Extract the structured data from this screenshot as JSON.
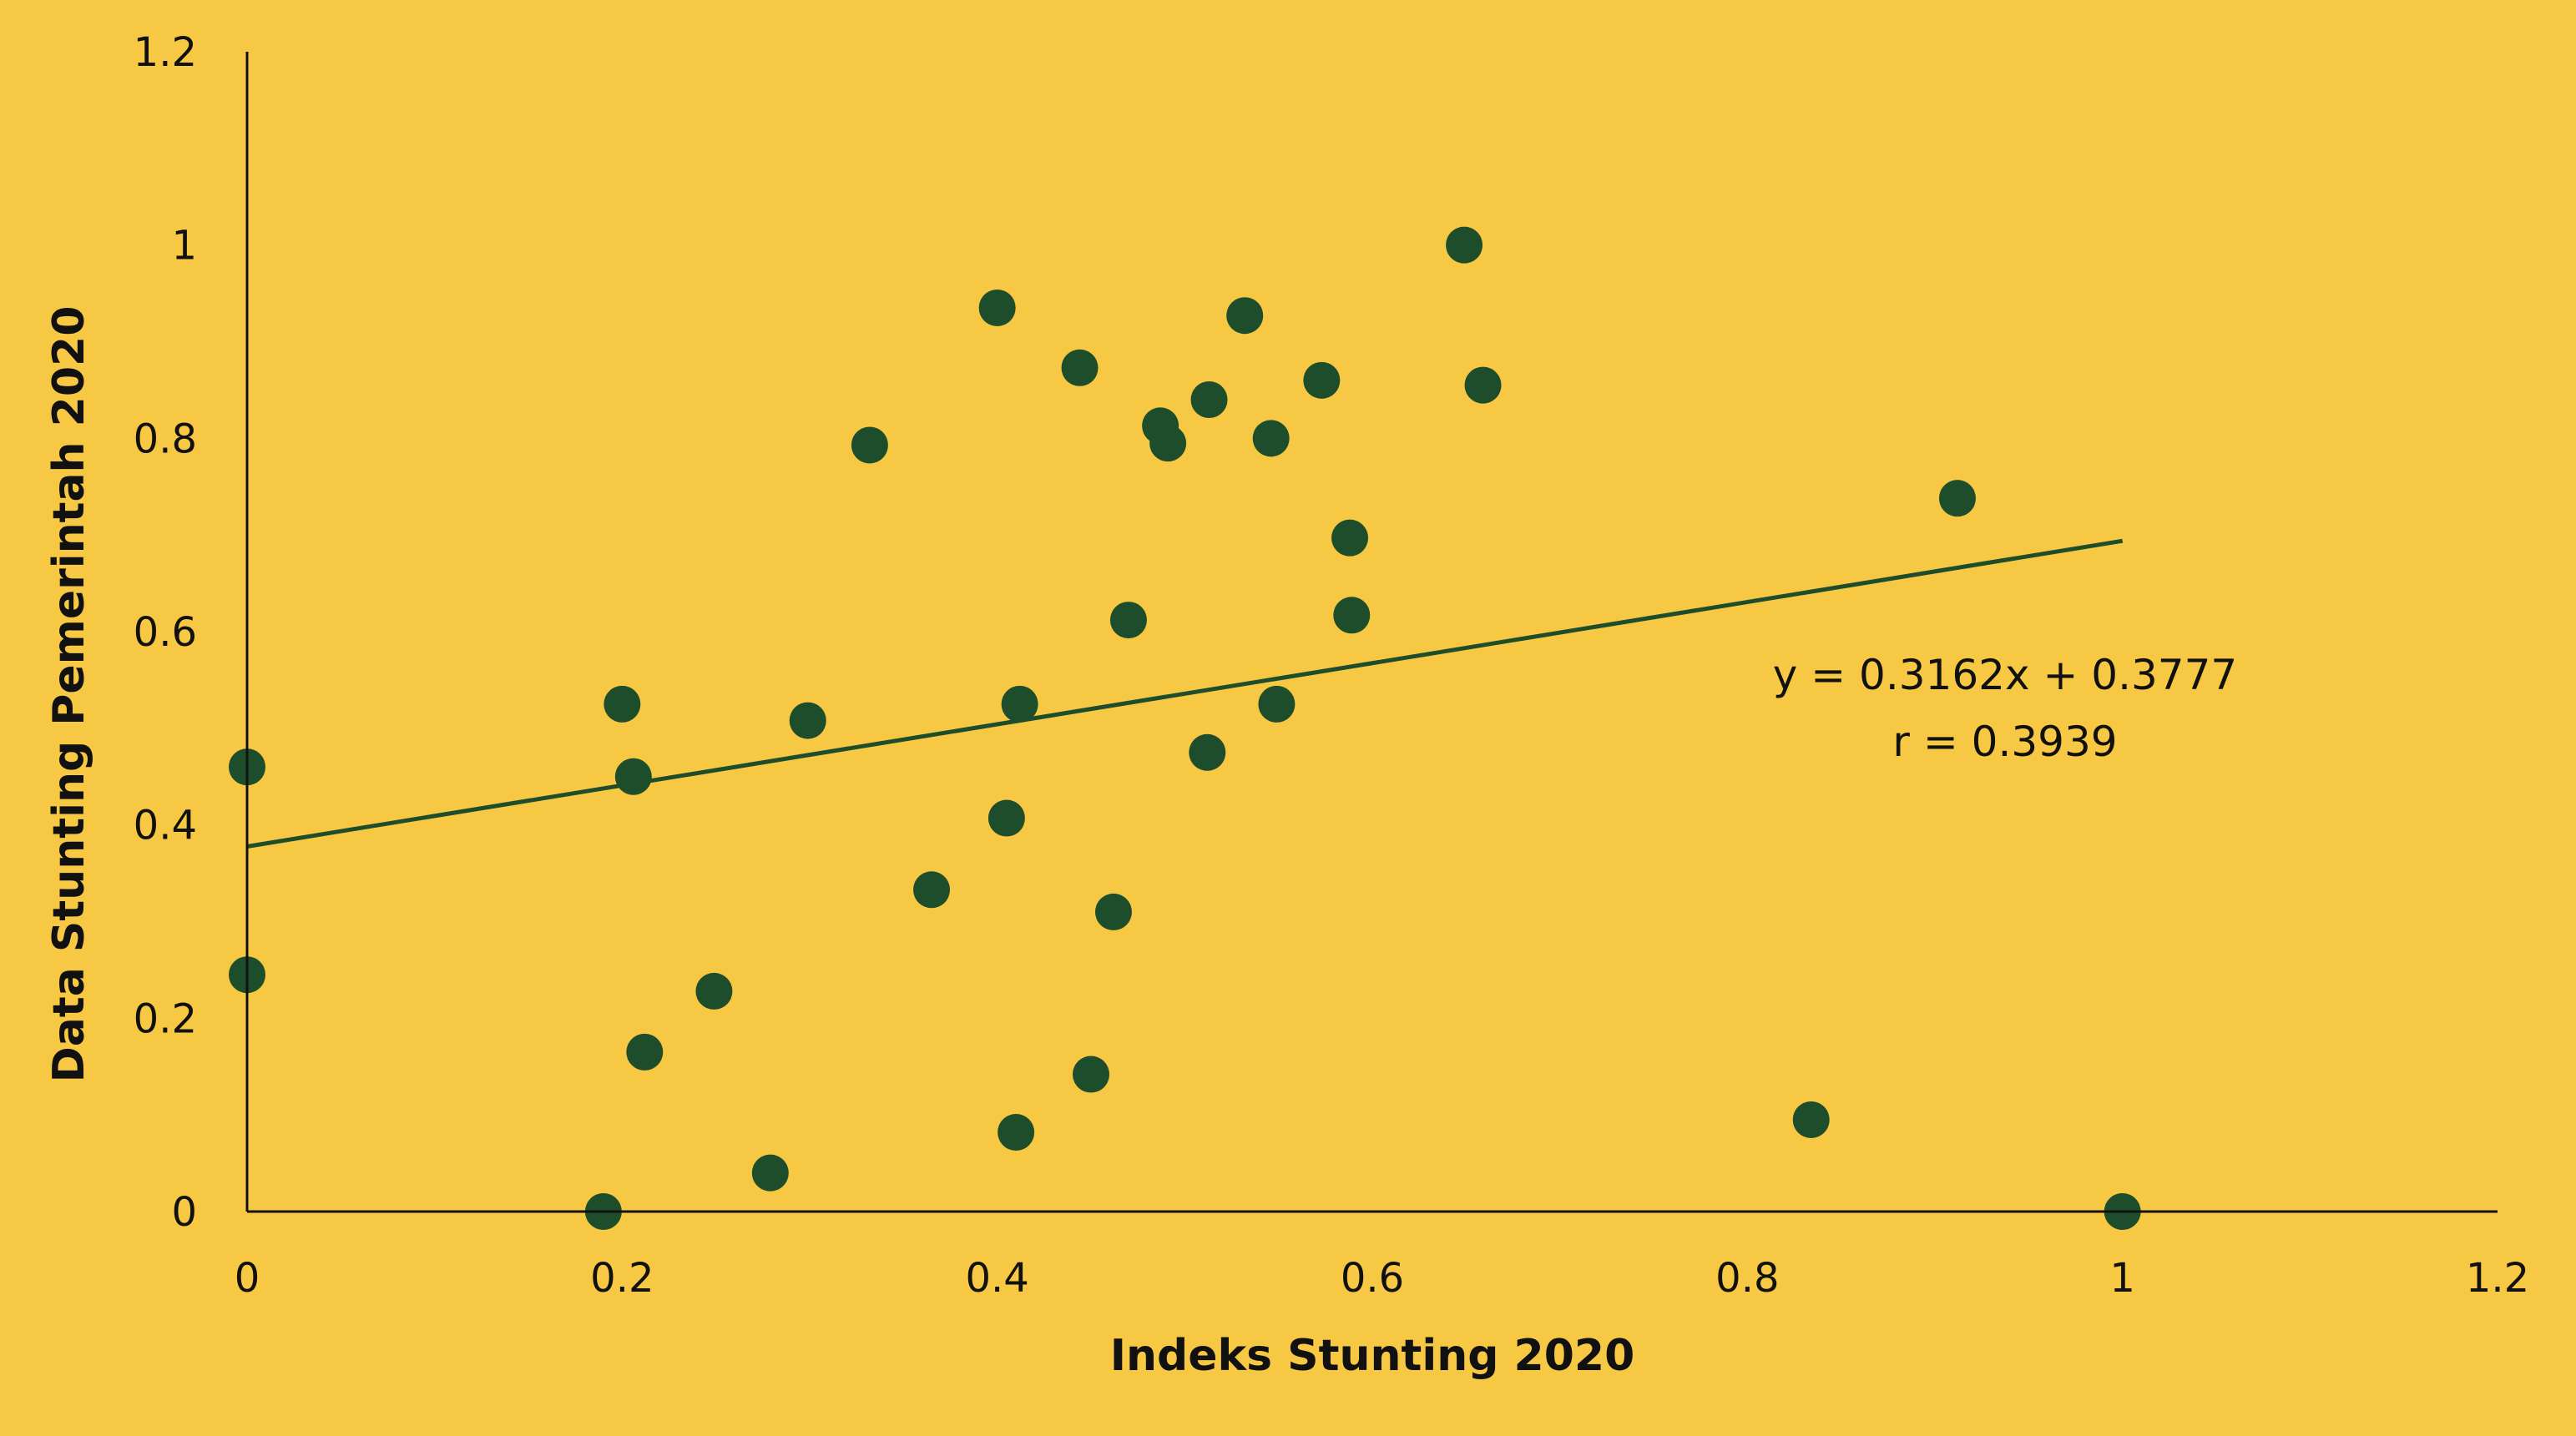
{
  "chart_data": {
    "type": "scatter",
    "title": "",
    "xlabel": "Indeks Stunting 2020",
    "ylabel": "Data Stunting Pemerintah 2020",
    "xlim": [
      0,
      1.2
    ],
    "ylim": [
      0,
      1.2
    ],
    "x_ticks": [
      "0",
      "0.2",
      "0.4",
      "0.6",
      "0.8",
      "1",
      "1.2"
    ],
    "y_ticks": [
      "0",
      "0.2",
      "0.4",
      "0.6",
      "0.8",
      "1",
      "1.2"
    ],
    "grid": false,
    "legend": "none",
    "colors": {
      "background": "#F7C843",
      "marker": "#1E4D2B",
      "trendline": "#1E4D2B",
      "axis": "#111111"
    },
    "series": [
      {
        "points": [
          {
            "x": 0.0,
            "y": 0.46
          },
          {
            "x": 0.0,
            "y": 0.245
          },
          {
            "x": 0.2,
            "y": 0.525
          },
          {
            "x": 0.206,
            "y": 0.45
          },
          {
            "x": 0.19,
            "y": 0.0
          },
          {
            "x": 0.212,
            "y": 0.165
          },
          {
            "x": 0.249,
            "y": 0.228
          },
          {
            "x": 0.279,
            "y": 0.04
          },
          {
            "x": 0.299,
            "y": 0.508
          },
          {
            "x": 0.332,
            "y": 0.793
          },
          {
            "x": 0.365,
            "y": 0.333
          },
          {
            "x": 0.4,
            "y": 0.935
          },
          {
            "x": 0.405,
            "y": 0.407
          },
          {
            "x": 0.41,
            "y": 0.082
          },
          {
            "x": 0.412,
            "y": 0.525
          },
          {
            "x": 0.444,
            "y": 0.873
          },
          {
            "x": 0.45,
            "y": 0.142
          },
          {
            "x": 0.462,
            "y": 0.31
          },
          {
            "x": 0.47,
            "y": 0.612
          },
          {
            "x": 0.487,
            "y": 0.813
          },
          {
            "x": 0.491,
            "y": 0.795
          },
          {
            "x": 0.512,
            "y": 0.475
          },
          {
            "x": 0.513,
            "y": 0.84
          },
          {
            "x": 0.532,
            "y": 0.927
          },
          {
            "x": 0.546,
            "y": 0.8
          },
          {
            "x": 0.549,
            "y": 0.525
          },
          {
            "x": 0.573,
            "y": 0.86
          },
          {
            "x": 0.588,
            "y": 0.697
          },
          {
            "x": 0.589,
            "y": 0.617
          },
          {
            "x": 0.649,
            "y": 1.0
          },
          {
            "x": 0.659,
            "y": 0.855
          },
          {
            "x": 0.834,
            "y": 0.095
          },
          {
            "x": 0.912,
            "y": 0.738
          },
          {
            "x": 1.0,
            "y": 0.0
          }
        ]
      }
    ],
    "trendline": {
      "slope": 0.3162,
      "intercept": 0.3777,
      "x_range": [
        0,
        1
      ]
    },
    "annotations": [
      "y = 0.3162x + 0.3777",
      "r = 0.3939"
    ]
  }
}
